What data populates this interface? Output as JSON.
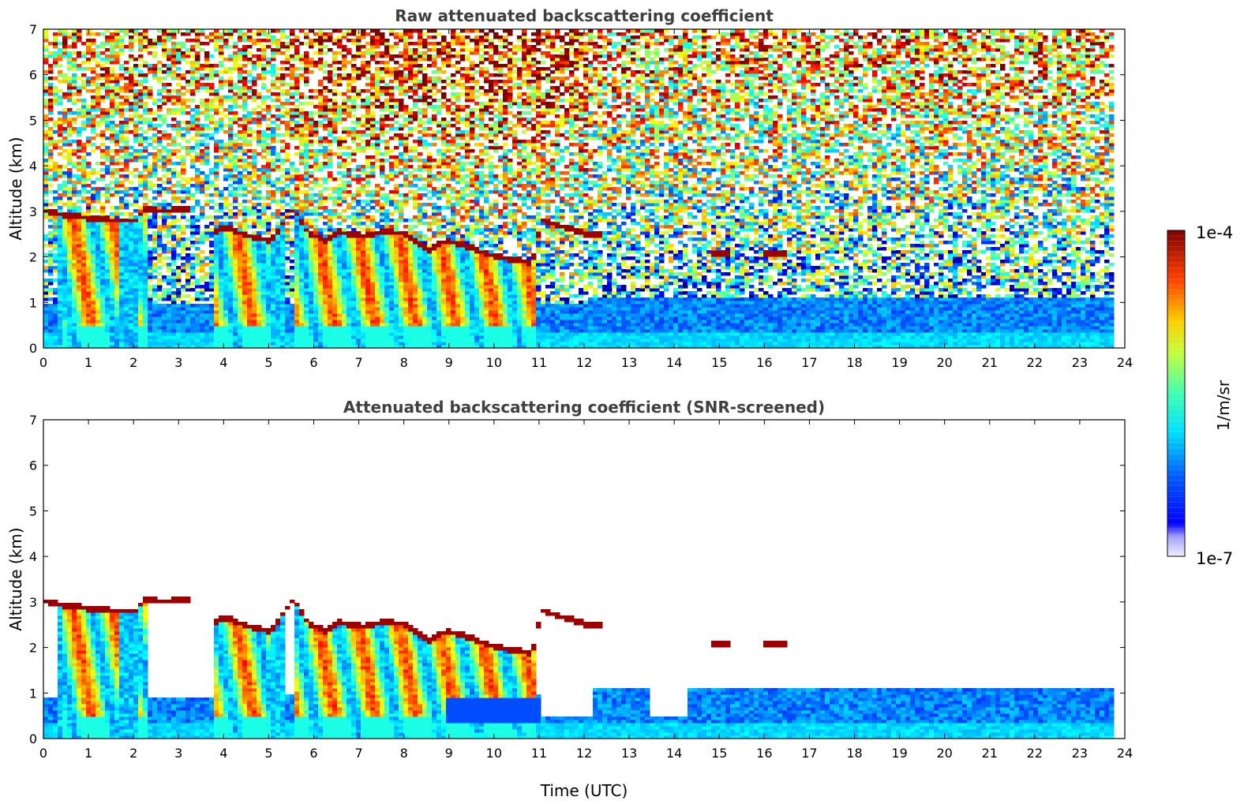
{
  "chart_data": [
    {
      "type": "heatmap",
      "title": "Raw attenuated backscattering coefficient",
      "xlabel": "",
      "ylabel": "Altitude (km)",
      "xlim": [
        0,
        24
      ],
      "ylim": [
        0,
        7
      ],
      "xticks": [
        0,
        1,
        2,
        3,
        4,
        5,
        6,
        7,
        8,
        9,
        10,
        11,
        12,
        13,
        14,
        15,
        16,
        17,
        18,
        19,
        20,
        21,
        22,
        23,
        24
      ],
      "yticks": [
        0,
        1,
        2,
        3,
        4,
        5,
        6,
        7
      ],
      "screened": false,
      "color_scale": "log",
      "data_extent_hours": [
        0,
        23.8
      ]
    },
    {
      "type": "heatmap",
      "title": "Attenuated backscattering coefficient (SNR-screened)",
      "xlabel": "Time (UTC)",
      "ylabel": "Altitude (km)",
      "xlim": [
        0,
        24
      ],
      "ylim": [
        0,
        7
      ],
      "xticks": [
        0,
        1,
        2,
        3,
        4,
        5,
        6,
        7,
        8,
        9,
        10,
        11,
        12,
        13,
        14,
        15,
        16,
        17,
        18,
        19,
        20,
        21,
        22,
        23,
        24
      ],
      "yticks": [
        0,
        1,
        2,
        3,
        4,
        5,
        6,
        7
      ],
      "screened": true,
      "color_scale": "log",
      "data_extent_hours": [
        0,
        23.8
      ]
    }
  ],
  "colorbar": {
    "label": "1/m/sr",
    "min_label": "1e-7",
    "max_label": "1e-4",
    "colormap": "jet",
    "scale": "log"
  },
  "colors": {
    "title_text": "#404040",
    "cloud_top": "#8b0000",
    "background": "#ffffff"
  }
}
